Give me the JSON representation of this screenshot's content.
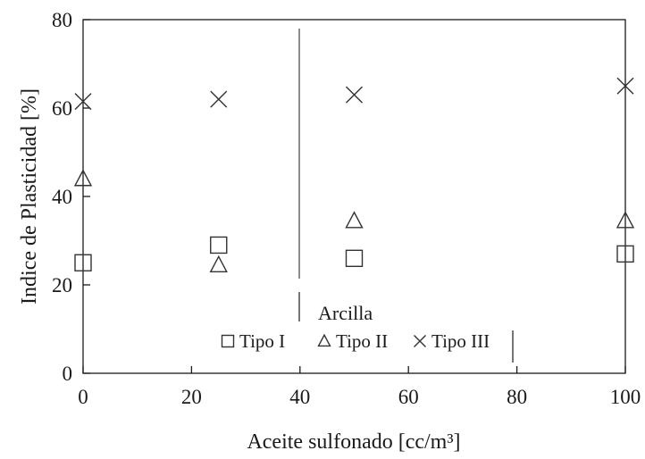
{
  "chart_data": {
    "type": "scatter",
    "xlabel": "Aceite sulfonado [cc/m³]",
    "ylabel": "Indice de Plasticidad  [%]",
    "xlim": [
      0,
      100
    ],
    "ylim": [
      0,
      80
    ],
    "xticks": [
      0,
      20,
      40,
      60,
      80,
      100
    ],
    "yticks": [
      0,
      20,
      40,
      60,
      80
    ],
    "grid": false,
    "legend": {
      "title": "Arcilla",
      "placement": "bottom-center"
    },
    "series": [
      {
        "name": "Tipo I",
        "marker": "square",
        "points": [
          {
            "x": 0,
            "y": 25
          },
          {
            "x": 25,
            "y": 29
          },
          {
            "x": 50,
            "y": 26
          },
          {
            "x": 100,
            "y": 27
          }
        ]
      },
      {
        "name": "Tipo II",
        "marker": "triangle",
        "points": [
          {
            "x": 0,
            "y": 44
          },
          {
            "x": 25,
            "y": 24.5
          },
          {
            "x": 50,
            "y": 34.5
          },
          {
            "x": 100,
            "y": 34.5
          }
        ]
      },
      {
        "name": "Tipo III",
        "marker": "x",
        "points": [
          {
            "x": 0,
            "y": 61.5
          },
          {
            "x": 25,
            "y": 62
          },
          {
            "x": 50,
            "y": 63
          },
          {
            "x": 100,
            "y": 65
          }
        ]
      }
    ],
    "colors": {
      "axis": "#1a1a1a",
      "marker": "#333333"
    }
  }
}
